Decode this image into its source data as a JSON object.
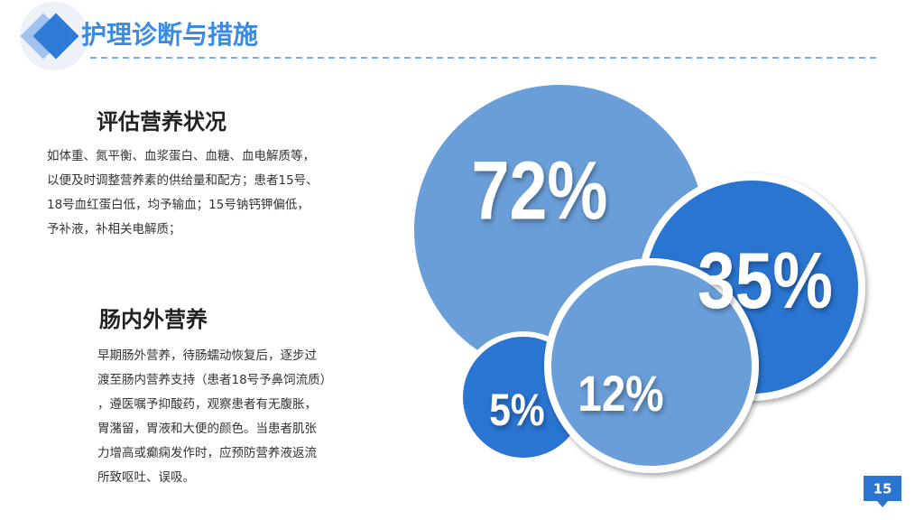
{
  "header": {
    "title": "护理诊断与措施"
  },
  "sections": [
    {
      "heading": "评估营养状况",
      "lines": [
        "如体重、氮平衡、血浆蛋白、血糖、血电解质等，",
        "以便及时调整营养素的供给量和配方；患者15号、",
        "18号血红蛋白低，均予输血；15号钠钙钾偏低，",
        "予补液，补相关电解质；"
      ]
    },
    {
      "heading": "肠内外营养",
      "lines": [
        "早期肠外营养，待肠蠕动恢复后，逐步过",
        "渡至肠内营养支持（患者18号予鼻饲流质）",
        "，遵医嘱予抑酸药，观察患者有无腹胀，",
        "胃潴留，胃液和大便的颜色。当患者肌张",
        "力增高或癫痫发作时，应预防营养液返流",
        "所致呕吐、误吸。"
      ]
    }
  ],
  "circles": [
    {
      "label": "72%"
    },
    {
      "label": "35%"
    },
    {
      "label": "5%"
    },
    {
      "label": "12%"
    }
  ],
  "page_number": "15"
}
